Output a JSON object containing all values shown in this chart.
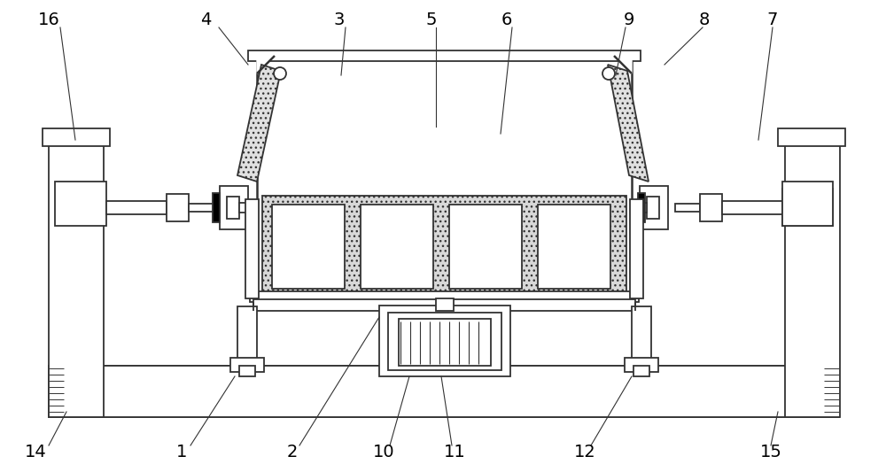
{
  "bg_color": "#ffffff",
  "line_color": "#333333",
  "lw": 1.3,
  "fig_width": 10.0,
  "fig_height": 5.33,
  "labels": [
    [
      "16",
      55,
      500,
      78,
      370
    ],
    [
      "4",
      235,
      500,
      295,
      455
    ],
    [
      "3",
      385,
      500,
      390,
      435
    ],
    [
      "5",
      490,
      500,
      490,
      380
    ],
    [
      "6",
      570,
      500,
      560,
      375
    ],
    [
      "9",
      710,
      500,
      695,
      435
    ],
    [
      "8",
      795,
      500,
      750,
      455
    ],
    [
      "7",
      870,
      500,
      850,
      370
    ],
    [
      "14",
      42,
      30,
      70,
      80
    ],
    [
      "1",
      205,
      30,
      268,
      108
    ],
    [
      "2",
      330,
      30,
      415,
      175
    ],
    [
      "10",
      435,
      30,
      468,
      110
    ],
    [
      "11",
      515,
      30,
      495,
      110
    ],
    [
      "12",
      660,
      30,
      718,
      108
    ],
    [
      "15",
      870,
      30,
      880,
      80
    ]
  ]
}
